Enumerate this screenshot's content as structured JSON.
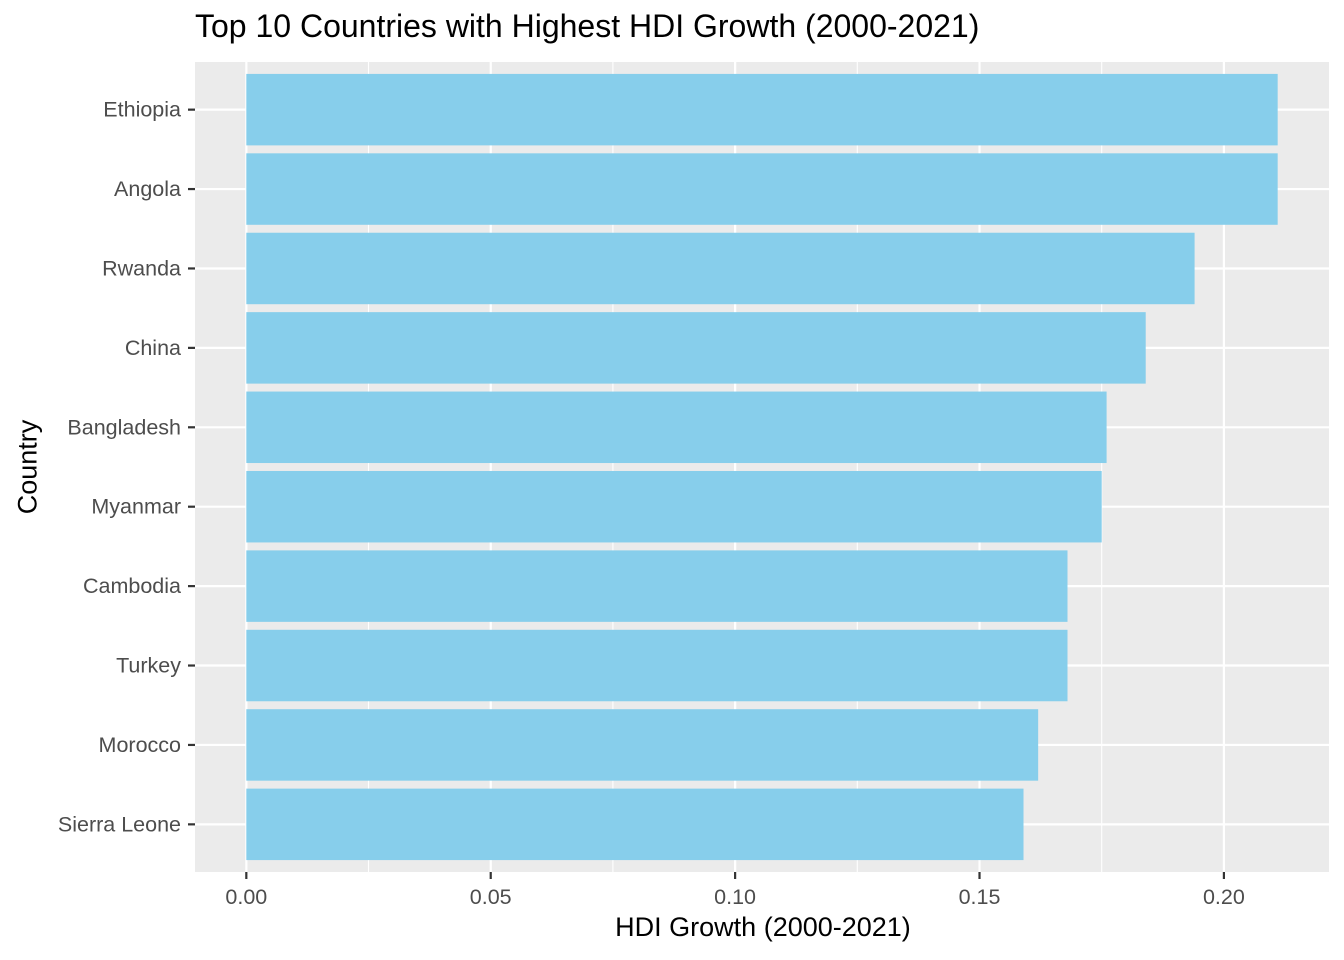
{
  "chart_data": {
    "type": "bar",
    "orientation": "horizontal",
    "title": "Top 10 Countries with Highest HDI Growth (2000-2021)",
    "xlabel": "HDI Growth (2000-2021)",
    "ylabel": "Country",
    "categories": [
      "Ethiopia",
      "Angola",
      "Rwanda",
      "China",
      "Bangladesh",
      "Myanmar",
      "Cambodia",
      "Turkey",
      "Morocco",
      "Sierra Leone"
    ],
    "values": [
      0.211,
      0.211,
      0.194,
      0.184,
      0.176,
      0.175,
      0.168,
      0.168,
      0.162,
      0.159
    ],
    "xlim": [
      -0.0105,
      0.2215
    ],
    "xticks": [
      0.0,
      0.05,
      0.1,
      0.15,
      0.2
    ],
    "xtick_labels": [
      "0.00",
      "0.05",
      "0.10",
      "0.15",
      "0.20"
    ],
    "grid": true,
    "legend": "none",
    "colors": {
      "bar": "#87CEEB",
      "panel_background": "#EBEBEB",
      "grid": "#FFFFFF",
      "tick_label": "#4D4D4D",
      "tick": "#333333"
    }
  }
}
